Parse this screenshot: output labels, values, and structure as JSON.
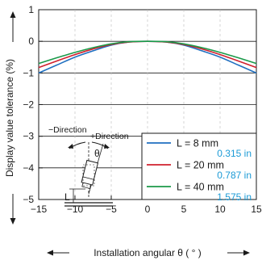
{
  "chart_data": {
    "type": "line",
    "xlabel": "Installation angular θ ( ° )",
    "ylabel": "Display value tolerance (%)",
    "xlim": [
      -15,
      15
    ],
    "ylim": [
      -5,
      1
    ],
    "xticks": [
      -15,
      -10,
      -5,
      0,
      5,
      10,
      15
    ],
    "yticks": [
      -5,
      -4,
      -3,
      -2,
      -1,
      0,
      1
    ],
    "xtick_labels": [
      "−15",
      "−10",
      "−5",
      "0",
      "5",
      "10",
      "15"
    ],
    "ytick_labels": [
      "−5",
      "−4",
      "−3",
      "−2",
      "−1",
      "0",
      "1"
    ],
    "legend_placement": "lower-right",
    "x": [
      -15,
      -12.5,
      -10,
      -7.5,
      -5,
      -2.5,
      0,
      2.5,
      5,
      7.5,
      10,
      12.5,
      15
    ],
    "series": [
      {
        "name": "L = 8 mm",
        "name_sub": "0.315 in",
        "color": "#1f6fc0",
        "values": [
          -1.0,
          -0.75,
          -0.5,
          -0.3,
          -0.12,
          -0.02,
          0,
          -0.02,
          -0.12,
          -0.3,
          -0.5,
          -0.75,
          -1.0
        ]
      },
      {
        "name": "L = 20 mm",
        "name_sub": "0.787 in",
        "color": "#d0202e",
        "values": [
          -0.83,
          -0.62,
          -0.42,
          -0.24,
          -0.1,
          -0.02,
          0,
          -0.02,
          -0.1,
          -0.24,
          -0.42,
          -0.62,
          -0.83
        ]
      },
      {
        "name": "L = 40 mm",
        "name_sub": "1.575 in",
        "color": "#1b9a4a",
        "values": [
          -0.7,
          -0.52,
          -0.35,
          -0.2,
          -0.08,
          -0.01,
          0,
          -0.01,
          -0.08,
          -0.2,
          -0.35,
          -0.52,
          -0.7
        ]
      }
    ],
    "inset": {
      "minus_direction": "−Direction",
      "plus_direction": "+Direction",
      "theta": "θ",
      "length": "L"
    }
  },
  "colors": {
    "axis": "#1a1a1a",
    "sub_label": "#1a9ad6"
  }
}
